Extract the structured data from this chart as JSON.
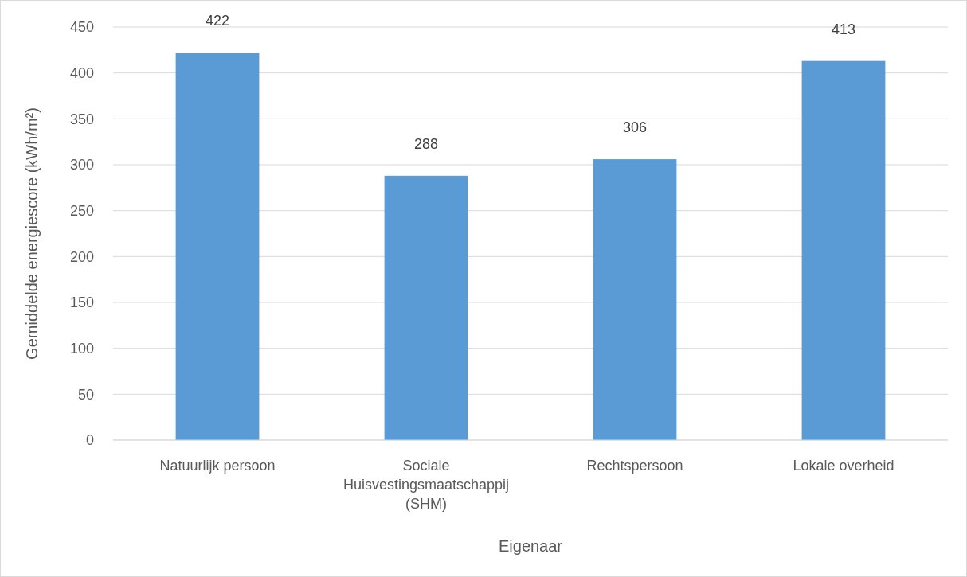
{
  "chart_data": {
    "type": "bar",
    "xlabel": "Eigenaar",
    "ylabel": "Gemiddelde energiescore (kWh/m²)",
    "categories": [
      "Natuurlijk persoon",
      "Sociale Huisvestingsmaatschappij (SHM)",
      "Rechtspersoon",
      "Lokale overheid"
    ],
    "values": [
      422,
      288,
      306,
      413
    ],
    "color": "#5b9bd5",
    "ylim": [
      0,
      450
    ],
    "yticks": [
      0,
      50,
      100,
      150,
      200,
      250,
      300,
      350,
      400,
      450
    ],
    "grid": "y",
    "data_labels": true
  }
}
